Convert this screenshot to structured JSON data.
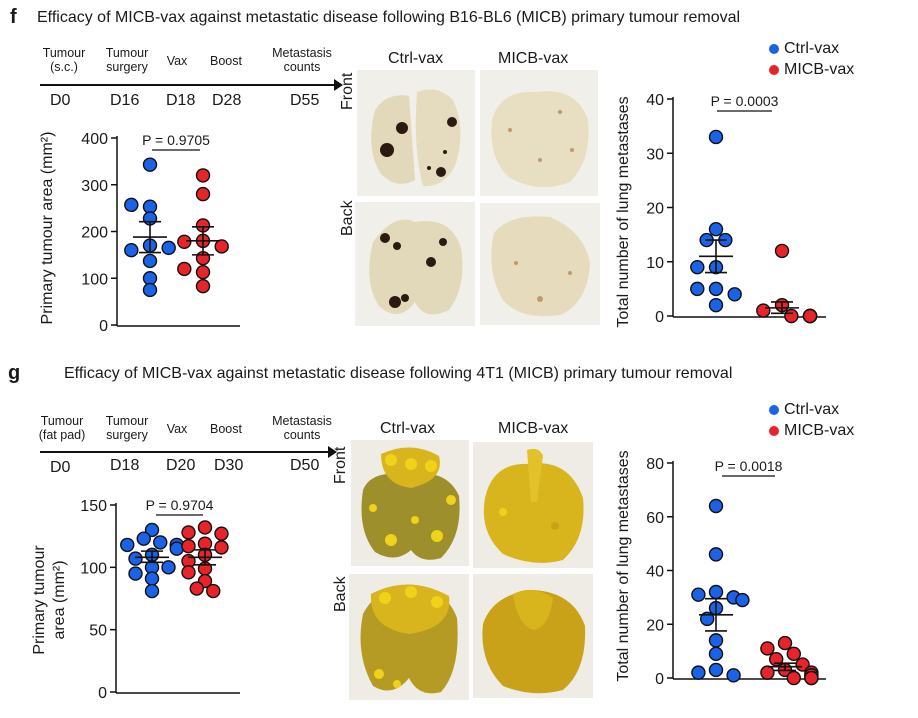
{
  "colors": {
    "ctrl": "#1a62e8",
    "micb": "#e8232a",
    "outline": "#111111",
    "axis": "#111111",
    "lung_melanoma_bg": "#f1efea",
    "lung_melanoma_tissue": "#e2d9bb",
    "lung_melanoma_nodule": "#2a1a12",
    "lung_4t1_bg": "#efece6",
    "lung_4t1_tissue": "#b59b23",
    "lung_4t1_tissue_light": "#d8b51c",
    "lung_4t1_nodule": "#f0d21a"
  },
  "legend": {
    "ctrl": "Ctrl-vax",
    "micb": "MICB-vax"
  },
  "panel_f": {
    "letter": "f",
    "title": "Efficacy of MICB-vax against metastatic disease following B16-BL6 (MICB) primary tumour removal",
    "timeline": {
      "events": [
        {
          "label1": "Tumour",
          "label2": "(s.c.)",
          "day": "D0"
        },
        {
          "label1": "Tumour",
          "label2": "surgery",
          "day": "D16"
        },
        {
          "label1": "Vax",
          "label2": "",
          "day": "D18"
        },
        {
          "label1": "Boost",
          "label2": "",
          "day": "D28"
        },
        {
          "label1": "Metastasis",
          "label2": "counts",
          "day": "D55"
        }
      ]
    },
    "images": {
      "col_labels": [
        "Ctrl-vax",
        "MICB-vax"
      ],
      "row_labels": [
        "Front",
        "Back"
      ]
    }
  },
  "panel_g": {
    "letter": "g",
    "title": "Efficacy of MICB-vax against metastatic disease following 4T1 (MICB) primary tumour removal",
    "timeline": {
      "events": [
        {
          "label1": "Tumour",
          "label2": "(fat pad)",
          "day": "D0"
        },
        {
          "label1": "Tumour",
          "label2": "surgery",
          "day": "D18"
        },
        {
          "label1": "Vax",
          "label2": "",
          "day": "D20"
        },
        {
          "label1": "Boost",
          "label2": "",
          "day": "D30"
        },
        {
          "label1": "Metastasis",
          "label2": "counts",
          "day": "D50"
        }
      ]
    },
    "images": {
      "col_labels": [
        "Ctrl-vax",
        "MICB-vax"
      ],
      "row_labels": [
        "Front",
        "Back"
      ]
    }
  },
  "chart_data": [
    {
      "id": "f-tumour-area",
      "type": "scatter",
      "title": "",
      "ylabel": "Primary tumour area (mm²)",
      "ylim": [
        0,
        400
      ],
      "yticks": [
        0,
        100,
        200,
        300,
        400
      ],
      "categories": [
        "Ctrl-vax",
        "MICB-vax"
      ],
      "pvalue": "P = 0.9705",
      "series": [
        {
          "name": "Ctrl-vax",
          "values": [
            343,
            253,
            257,
            228,
            170,
            160,
            165,
            137,
            100,
            75
          ],
          "mean": 188,
          "sem_low": 155,
          "sem_high": 221
        },
        {
          "name": "MICB-vax",
          "values": [
            320,
            280,
            213,
            180,
            178,
            168,
            143,
            113,
            120,
            83
          ],
          "mean": 180,
          "sem_low": 150,
          "sem_high": 210
        }
      ]
    },
    {
      "id": "f-lung-mets",
      "type": "scatter",
      "title": "",
      "ylabel": "Total number of lung metastases",
      "ylim": [
        0,
        40
      ],
      "yticks": [
        0,
        10,
        20,
        30,
        40
      ],
      "categories": [
        "Ctrl-vax",
        "MICB-vax"
      ],
      "pvalue": "P = 0.0003",
      "series": [
        {
          "name": "Ctrl-vax",
          "values": [
            33,
            16,
            14,
            14,
            9,
            9,
            5,
            5,
            4,
            2
          ],
          "mean": 11,
          "sem_low": 8,
          "sem_high": 14
        },
        {
          "name": "MICB-vax",
          "values": [
            12,
            2,
            1,
            0,
            0,
            0,
            0,
            0,
            0,
            0
          ],
          "mean": 1.5,
          "sem_low": 0.5,
          "sem_high": 2.6
        }
      ]
    },
    {
      "id": "g-tumour-area",
      "type": "scatter",
      "title": "",
      "ylabel": "Primary tumour area (mm²)",
      "ylim": [
        0,
        150
      ],
      "yticks": [
        0,
        50,
        100,
        150
      ],
      "categories": [
        "Ctrl-vax",
        "MICB-vax"
      ],
      "pvalue": "P = 0.9704",
      "series": [
        {
          "name": "Ctrl-vax",
          "values": [
            130,
            123,
            120,
            118,
            118,
            115,
            110,
            107,
            100,
            100,
            95,
            91,
            81
          ],
          "mean": 108,
          "sem_low": 104,
          "sem_high": 113
        },
        {
          "name": "MICB-vax",
          "values": [
            132,
            128,
            127,
            119,
            117,
            116,
            110,
            105,
            99,
            96,
            89,
            83,
            81
          ],
          "mean": 108,
          "sem_low": 102,
          "sem_high": 114
        }
      ]
    },
    {
      "id": "g-lung-mets",
      "type": "scatter",
      "title": "",
      "ylabel": "Total number of lung metastases",
      "ylim": [
        0,
        80
      ],
      "yticks": [
        0,
        20,
        40,
        60,
        80
      ],
      "categories": [
        "Ctrl-vax",
        "MICB-vax"
      ],
      "pvalue": "P = 0.0018",
      "series": [
        {
          "name": "Ctrl-vax",
          "values": [
            64,
            46,
            32,
            31,
            30,
            29,
            26,
            22,
            14,
            9,
            3,
            2,
            1
          ],
          "mean": 23.5,
          "sem_low": 17.5,
          "sem_high": 29.5
        },
        {
          "name": "MICB-vax",
          "values": [
            13,
            11,
            9,
            7,
            5,
            3,
            2,
            2,
            1,
            1,
            0,
            0,
            0
          ],
          "mean": 4.2,
          "sem_low": 2.8,
          "sem_high": 5.5
        }
      ]
    }
  ]
}
